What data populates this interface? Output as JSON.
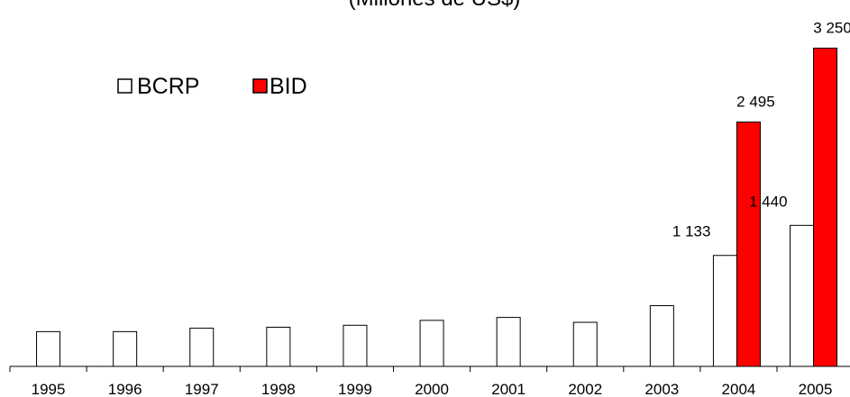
{
  "chart_data": {
    "type": "bar",
    "title": "(Millones de US$)",
    "categories": [
      "1995",
      "1996",
      "1997",
      "1998",
      "1999",
      "2000",
      "2001",
      "2002",
      "2003",
      "2004",
      "2005"
    ],
    "series": [
      {
        "name": "BCRP",
        "color": "#ffffff",
        "values": [
          355,
          355,
          390,
          400,
          420,
          470,
          500,
          450,
          620,
          1133,
          1440
        ]
      },
      {
        "name": "BID",
        "color": "#ff0000",
        "values": [
          null,
          null,
          null,
          null,
          null,
          null,
          null,
          null,
          null,
          2495,
          3250
        ]
      }
    ],
    "data_labels": [
      {
        "series": "BCRP",
        "category": "2004",
        "text": "1 133"
      },
      {
        "series": "BCRP",
        "category": "2005",
        "text": "1 440"
      },
      {
        "series": "BID",
        "category": "2004",
        "text": "2 495"
      },
      {
        "series": "BID",
        "category": "2005",
        "text": "3 250"
      }
    ],
    "ylim": [
      0,
      3300
    ],
    "grid": false,
    "legend": "top-left",
    "xlabel": "",
    "ylabel": ""
  }
}
